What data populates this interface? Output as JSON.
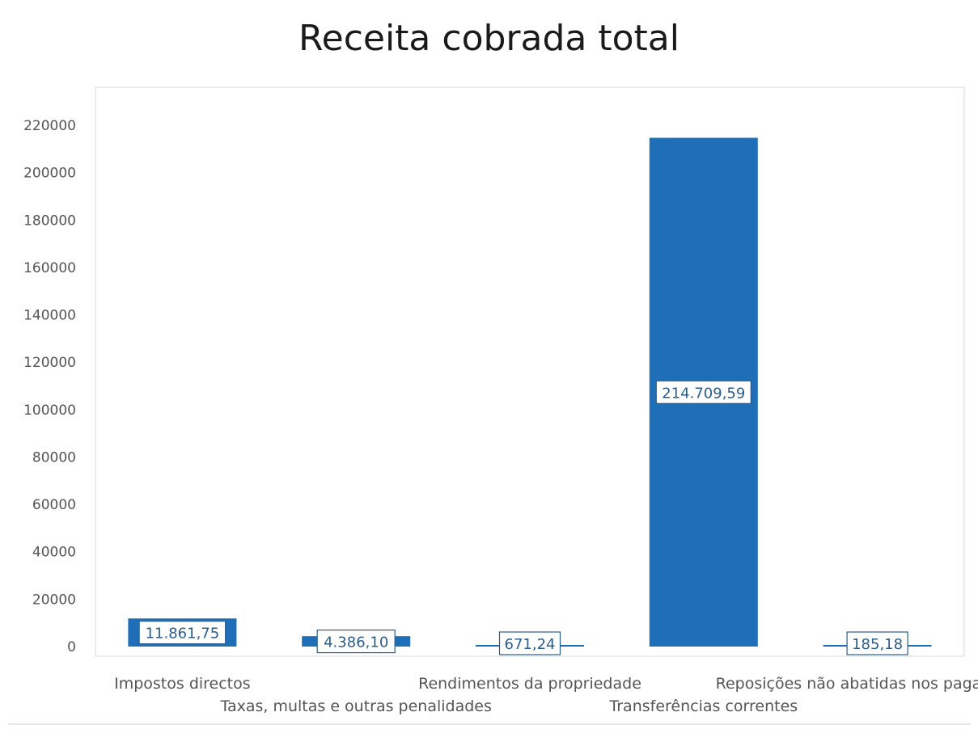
{
  "chart_data": {
    "type": "bar",
    "title": "Receita cobrada total",
    "xlabel": "",
    "ylabel": "",
    "categories": [
      "Impostos directos",
      "Taxas, multas e outras penalidades",
      "Rendimentos da propriedade",
      "Transferências correntes",
      "Reposições não abatidas nos pagamentos"
    ],
    "values": [
      11861.75,
      4386.1,
      671.24,
      214709.59,
      185.18
    ],
    "data_labels": [
      "11.861,75",
      "4.386,10",
      "671,24",
      "214.709,59",
      "185,18"
    ],
    "ylim": [
      0,
      220000
    ],
    "yticks": [
      0,
      20000,
      40000,
      60000,
      80000,
      100000,
      120000,
      140000,
      160000,
      180000,
      200000,
      220000
    ],
    "ytick_labels": [
      "0",
      "20000",
      "40000",
      "60000",
      "80000",
      "100000",
      "120000",
      "140000",
      "160000",
      "180000",
      "200000",
      "220000"
    ],
    "grid": false,
    "legend": "none",
    "bar_color": "#1f6fb8",
    "label_text_color": "#2b5d8c"
  }
}
